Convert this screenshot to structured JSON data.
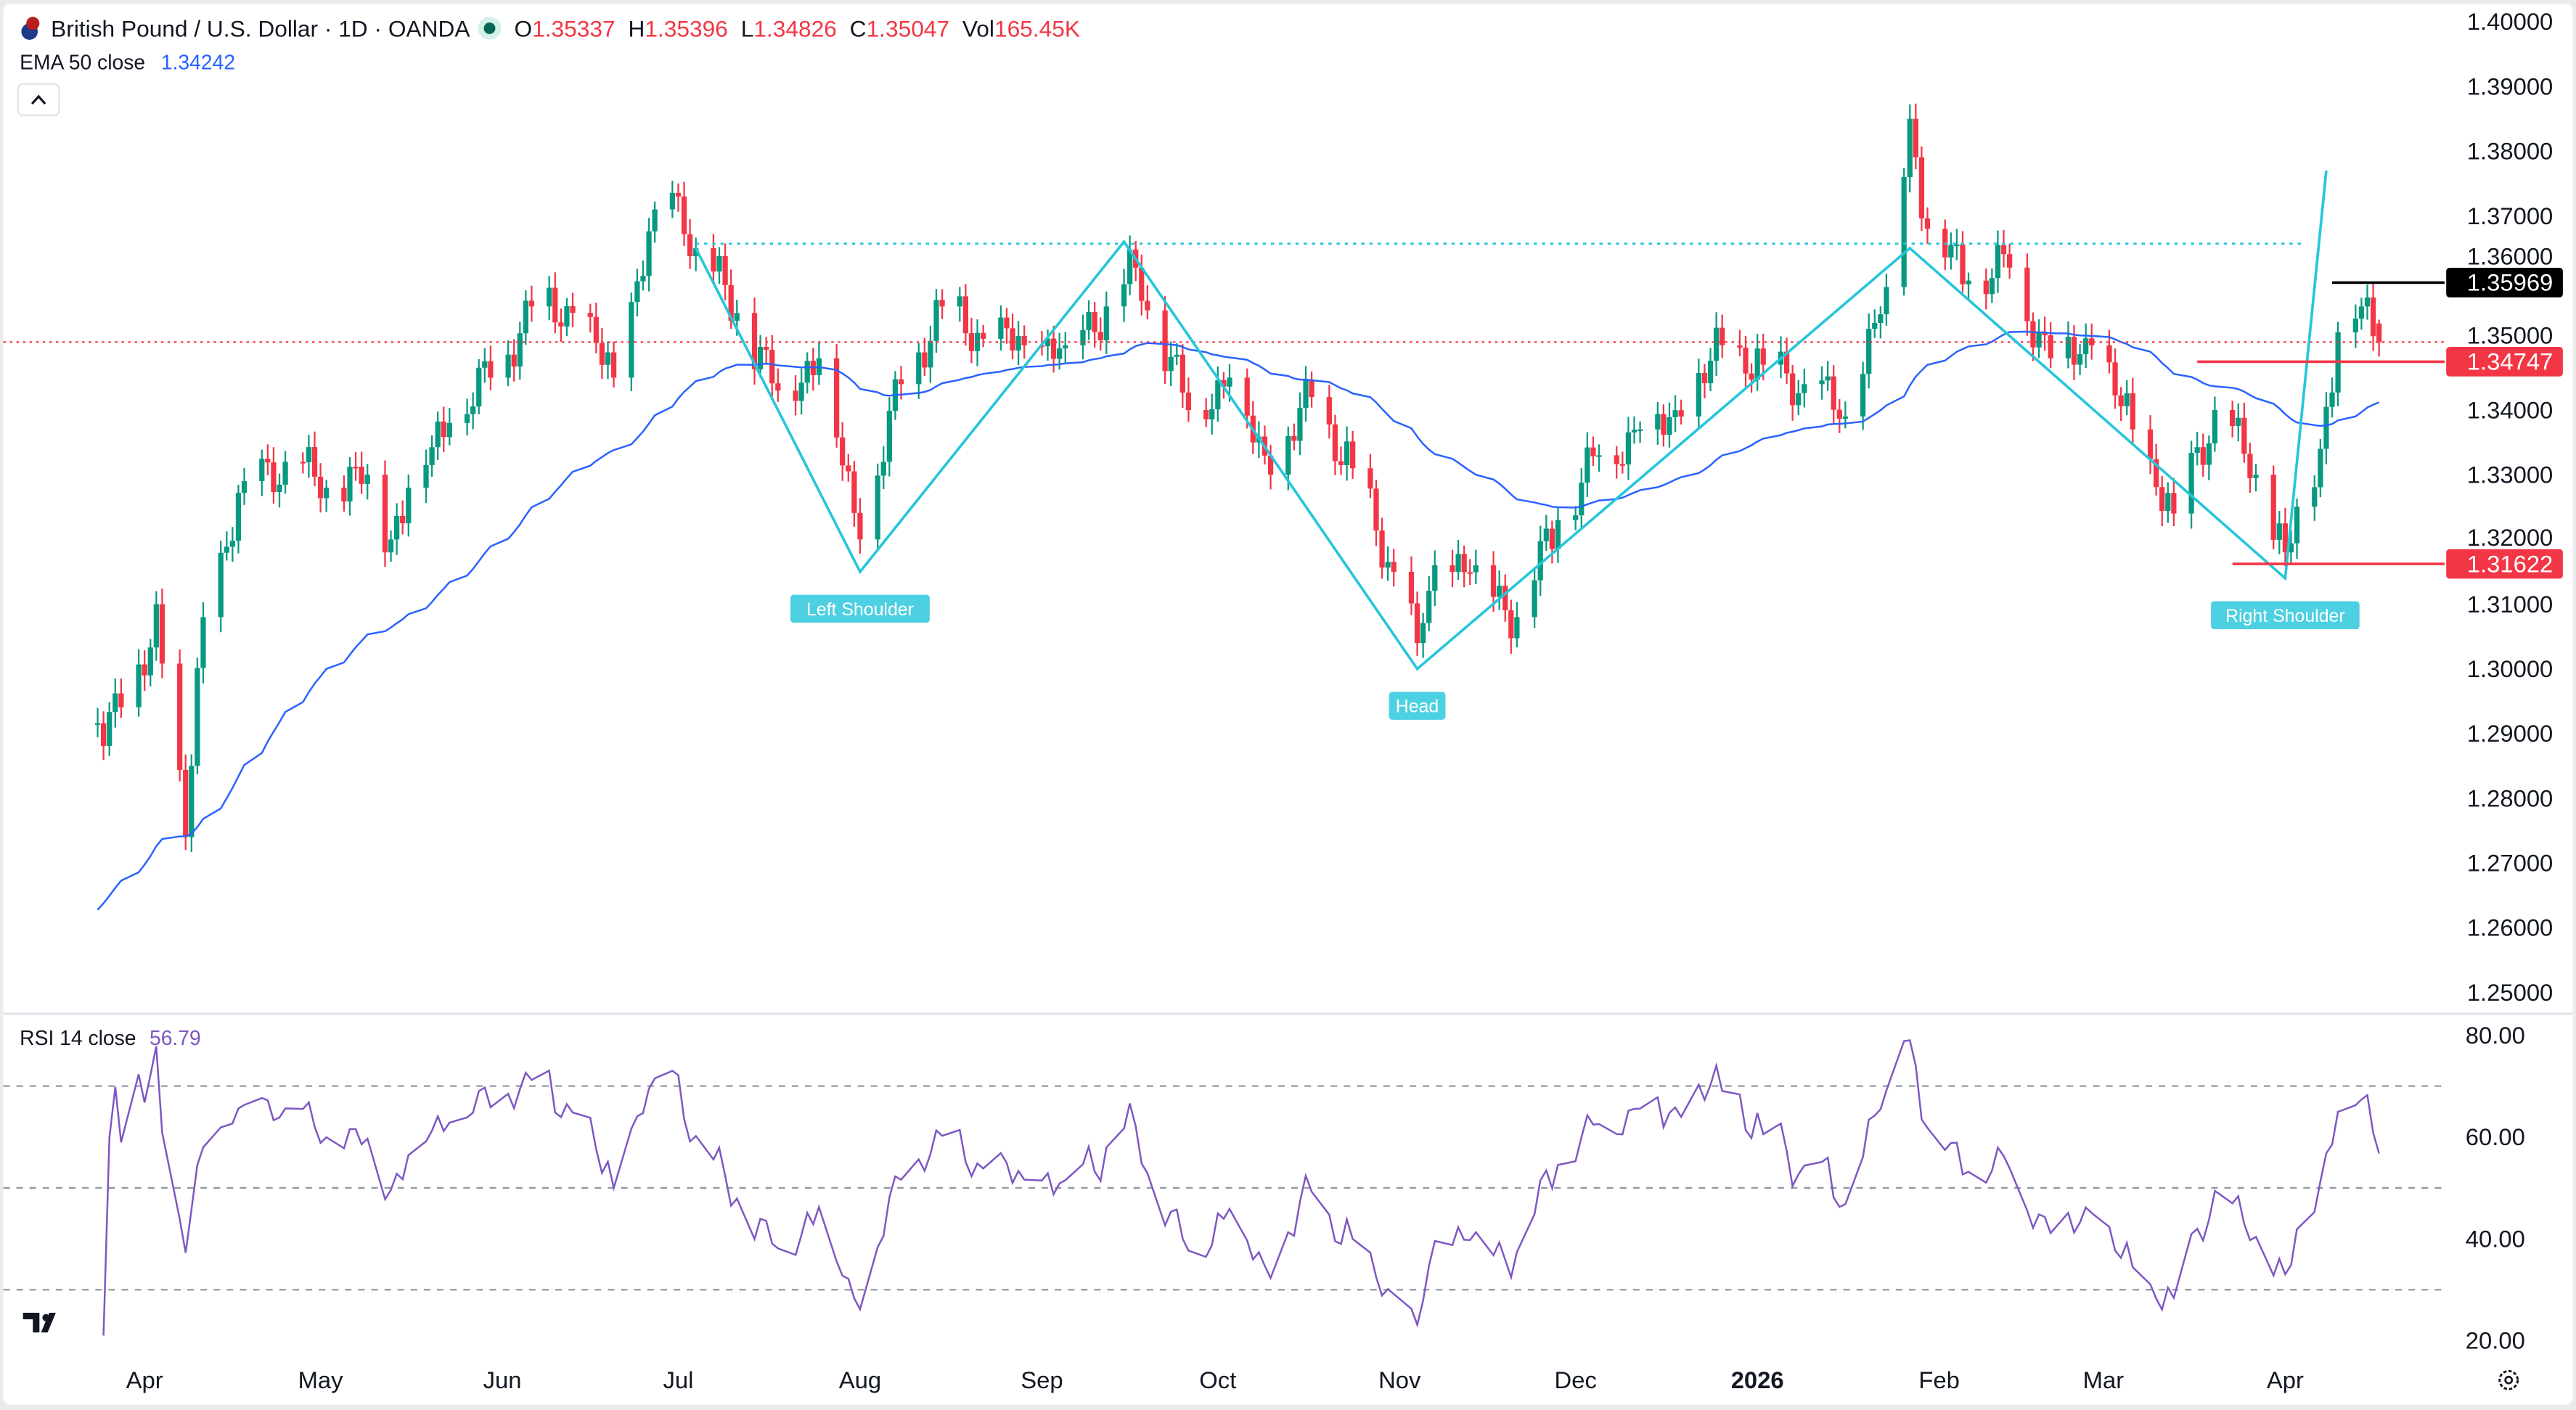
{
  "header": {
    "title": "British Pound / U.S. Dollar · 1D · OANDA",
    "o_label": "O",
    "o": "1.35337",
    "h_label": "H",
    "h": "1.35396",
    "l_label": "L",
    "l": "1.34826",
    "c_label": "C",
    "c": "1.35047",
    "vol_label": "Vol",
    "vol": "165.45K",
    "ema_label": "EMA 50 close",
    "ema_value": "1.34242",
    "collapse_icon": "chevron-up-icon"
  },
  "rsi_header": {
    "label": "RSI 14 close",
    "value": "56.79"
  },
  "colors": {
    "up": "#089981",
    "down": "#f23645",
    "ema": "#2962ff",
    "pattern": "#26c6da",
    "rsi": "#7e57c2"
  },
  "chart_data": {
    "type": "candlestick",
    "symbol": "GBPUSD",
    "ylim": [
      1.25,
      1.4
    ],
    "y_ticks": [
      "1.40000",
      "1.39000",
      "1.38000",
      "1.37000",
      "1.36000",
      "1.35000",
      "1.34000",
      "1.33000",
      "1.32000",
      "1.31000",
      "1.30000",
      "1.29000",
      "1.28000",
      "1.27000",
      "1.26000",
      "1.25000"
    ],
    "x_ticks": [
      {
        "label": "Apr",
        "date": "2025-04-01"
      },
      {
        "label": "May",
        "date": "2025-05-01"
      },
      {
        "label": "Jun",
        "date": "2025-06-01"
      },
      {
        "label": "Jul",
        "date": "2025-07-01"
      },
      {
        "label": "Aug",
        "date": "2025-08-01"
      },
      {
        "label": "Sep",
        "date": "2025-09-01"
      },
      {
        "label": "Oct",
        "date": "2025-10-01"
      },
      {
        "label": "Nov",
        "date": "2025-11-01"
      },
      {
        "label": "Dec",
        "date": "2025-12-01"
      },
      {
        "label": "2026",
        "date": "2026-01-01"
      },
      {
        "label": "Feb",
        "date": "2026-02-01"
      },
      {
        "label": "Mar",
        "date": "2026-03-01"
      },
      {
        "label": "Apr",
        "date": "2026-04-01"
      }
    ],
    "closes": [
      [
        "2025-03-24",
        1.2916
      ],
      [
        "2025-04-01",
        1.299
      ],
      [
        "2025-04-03",
        1.31
      ],
      [
        "2025-04-08",
        1.274
      ],
      [
        "2025-04-11",
        1.308
      ],
      [
        "2025-04-18",
        1.329
      ],
      [
        "2025-04-25",
        1.332
      ],
      [
        "2025-05-02",
        1.328
      ],
      [
        "2025-05-09",
        1.33
      ],
      [
        "2025-05-12",
        1.318
      ],
      [
        "2025-05-16",
        1.328
      ],
      [
        "2025-05-23",
        1.338
      ],
      [
        "2025-05-30",
        1.345
      ],
      [
        "2025-06-06",
        1.356
      ],
      [
        "2025-06-13",
        1.355
      ],
      [
        "2025-06-20",
        1.345
      ],
      [
        "2025-06-27",
        1.371
      ],
      [
        "2025-07-01",
        1.373
      ],
      [
        "2025-07-04",
        1.365
      ],
      [
        "2025-07-11",
        1.355
      ],
      [
        "2025-07-18",
        1.343
      ],
      [
        "2025-07-25",
        1.348
      ],
      [
        "2025-08-01",
        1.32
      ],
      [
        "2025-08-08",
        1.344
      ],
      [
        "2025-08-15",
        1.356
      ],
      [
        "2025-08-22",
        1.351
      ],
      [
        "2025-08-29",
        1.35
      ],
      [
        "2025-09-05",
        1.35
      ],
      [
        "2025-09-12",
        1.356
      ],
      [
        "2025-09-17",
        1.362
      ],
      [
        "2025-09-26",
        1.34
      ],
      [
        "2025-10-03",
        1.345
      ],
      [
        "2025-10-10",
        1.33
      ],
      [
        "2025-10-17",
        1.342
      ],
      [
        "2025-10-24",
        1.331
      ],
      [
        "2025-10-31",
        1.315
      ],
      [
        "2025-11-04",
        1.304
      ],
      [
        "2025-11-07",
        1.316
      ],
      [
        "2025-11-14",
        1.316
      ],
      [
        "2025-11-21",
        1.308
      ],
      [
        "2025-11-28",
        1.323
      ],
      [
        "2025-12-05",
        1.333
      ],
      [
        "2025-12-12",
        1.337
      ],
      [
        "2025-12-19",
        1.339
      ],
      [
        "2025-12-26",
        1.35
      ],
      [
        "2026-01-02",
        1.347
      ],
      [
        "2026-01-09",
        1.344
      ],
      [
        "2026-01-16",
        1.339
      ],
      [
        "2026-01-23",
        1.359
      ],
      [
        "2026-01-27",
        1.385
      ],
      [
        "2026-01-30",
        1.368
      ],
      [
        "2026-02-06",
        1.36
      ],
      [
        "2026-02-13",
        1.362
      ],
      [
        "2026-02-20",
        1.348
      ],
      [
        "2026-02-27",
        1.35
      ],
      [
        "2026-03-06",
        1.337
      ],
      [
        "2026-03-13",
        1.324
      ],
      [
        "2026-03-20",
        1.34
      ],
      [
        "2026-03-27",
        1.33
      ],
      [
        "2026-04-01",
        1.318
      ],
      [
        "2026-04-07",
        1.334
      ],
      [
        "2026-04-10",
        1.352
      ],
      [
        "2026-04-14",
        1.356
      ],
      [
        "2026-04-17",
        1.35047
      ]
    ],
    "last_candle": {
      "open": 1.35337,
      "high": 1.35396,
      "low": 1.34826,
      "close": 1.35047
    },
    "ema_period": 50,
    "rsi": {
      "period": 14,
      "ylim": [
        20,
        80
      ],
      "y_ticks": [
        "80.00",
        "60.00",
        "40.00",
        "20.00"
      ],
      "levels": [
        70,
        50,
        30
      ],
      "last": 56.79
    },
    "pattern": {
      "points": [
        [
          "2025-07-04",
          1.365
        ],
        [
          "2025-08-01",
          1.315
        ],
        [
          "2025-09-15",
          1.366
        ],
        [
          "2025-11-04",
          1.3
        ],
        [
          "2026-01-27",
          1.365
        ],
        [
          "2026-04-01",
          1.314
        ],
        [
          "2026-04-08",
          1.377
        ]
      ],
      "labels": [
        {
          "text": "Left Shoulder",
          "date": "2025-08-01",
          "price": 1.315
        },
        {
          "text": "Head",
          "date": "2025-11-04",
          "price": 1.3
        },
        {
          "text": "Right Shoulder",
          "date": "2026-04-01",
          "price": 1.314
        }
      ],
      "neckline": {
        "price": 1.3657,
        "from": "2025-07-04",
        "to": "2026-04-04"
      }
    },
    "levels": [
      {
        "label": "1.35969",
        "price": 1.35969,
        "from": "2026-04-09",
        "color": "#000000"
      },
      {
        "label": "1.34747",
        "price": 1.34747,
        "from": "2026-03-17",
        "color": "#f23645"
      },
      {
        "label": "1.31622",
        "price": 1.31622,
        "from": "2026-03-23",
        "color": "#f23645"
      }
    ],
    "current_price": 1.3505
  }
}
